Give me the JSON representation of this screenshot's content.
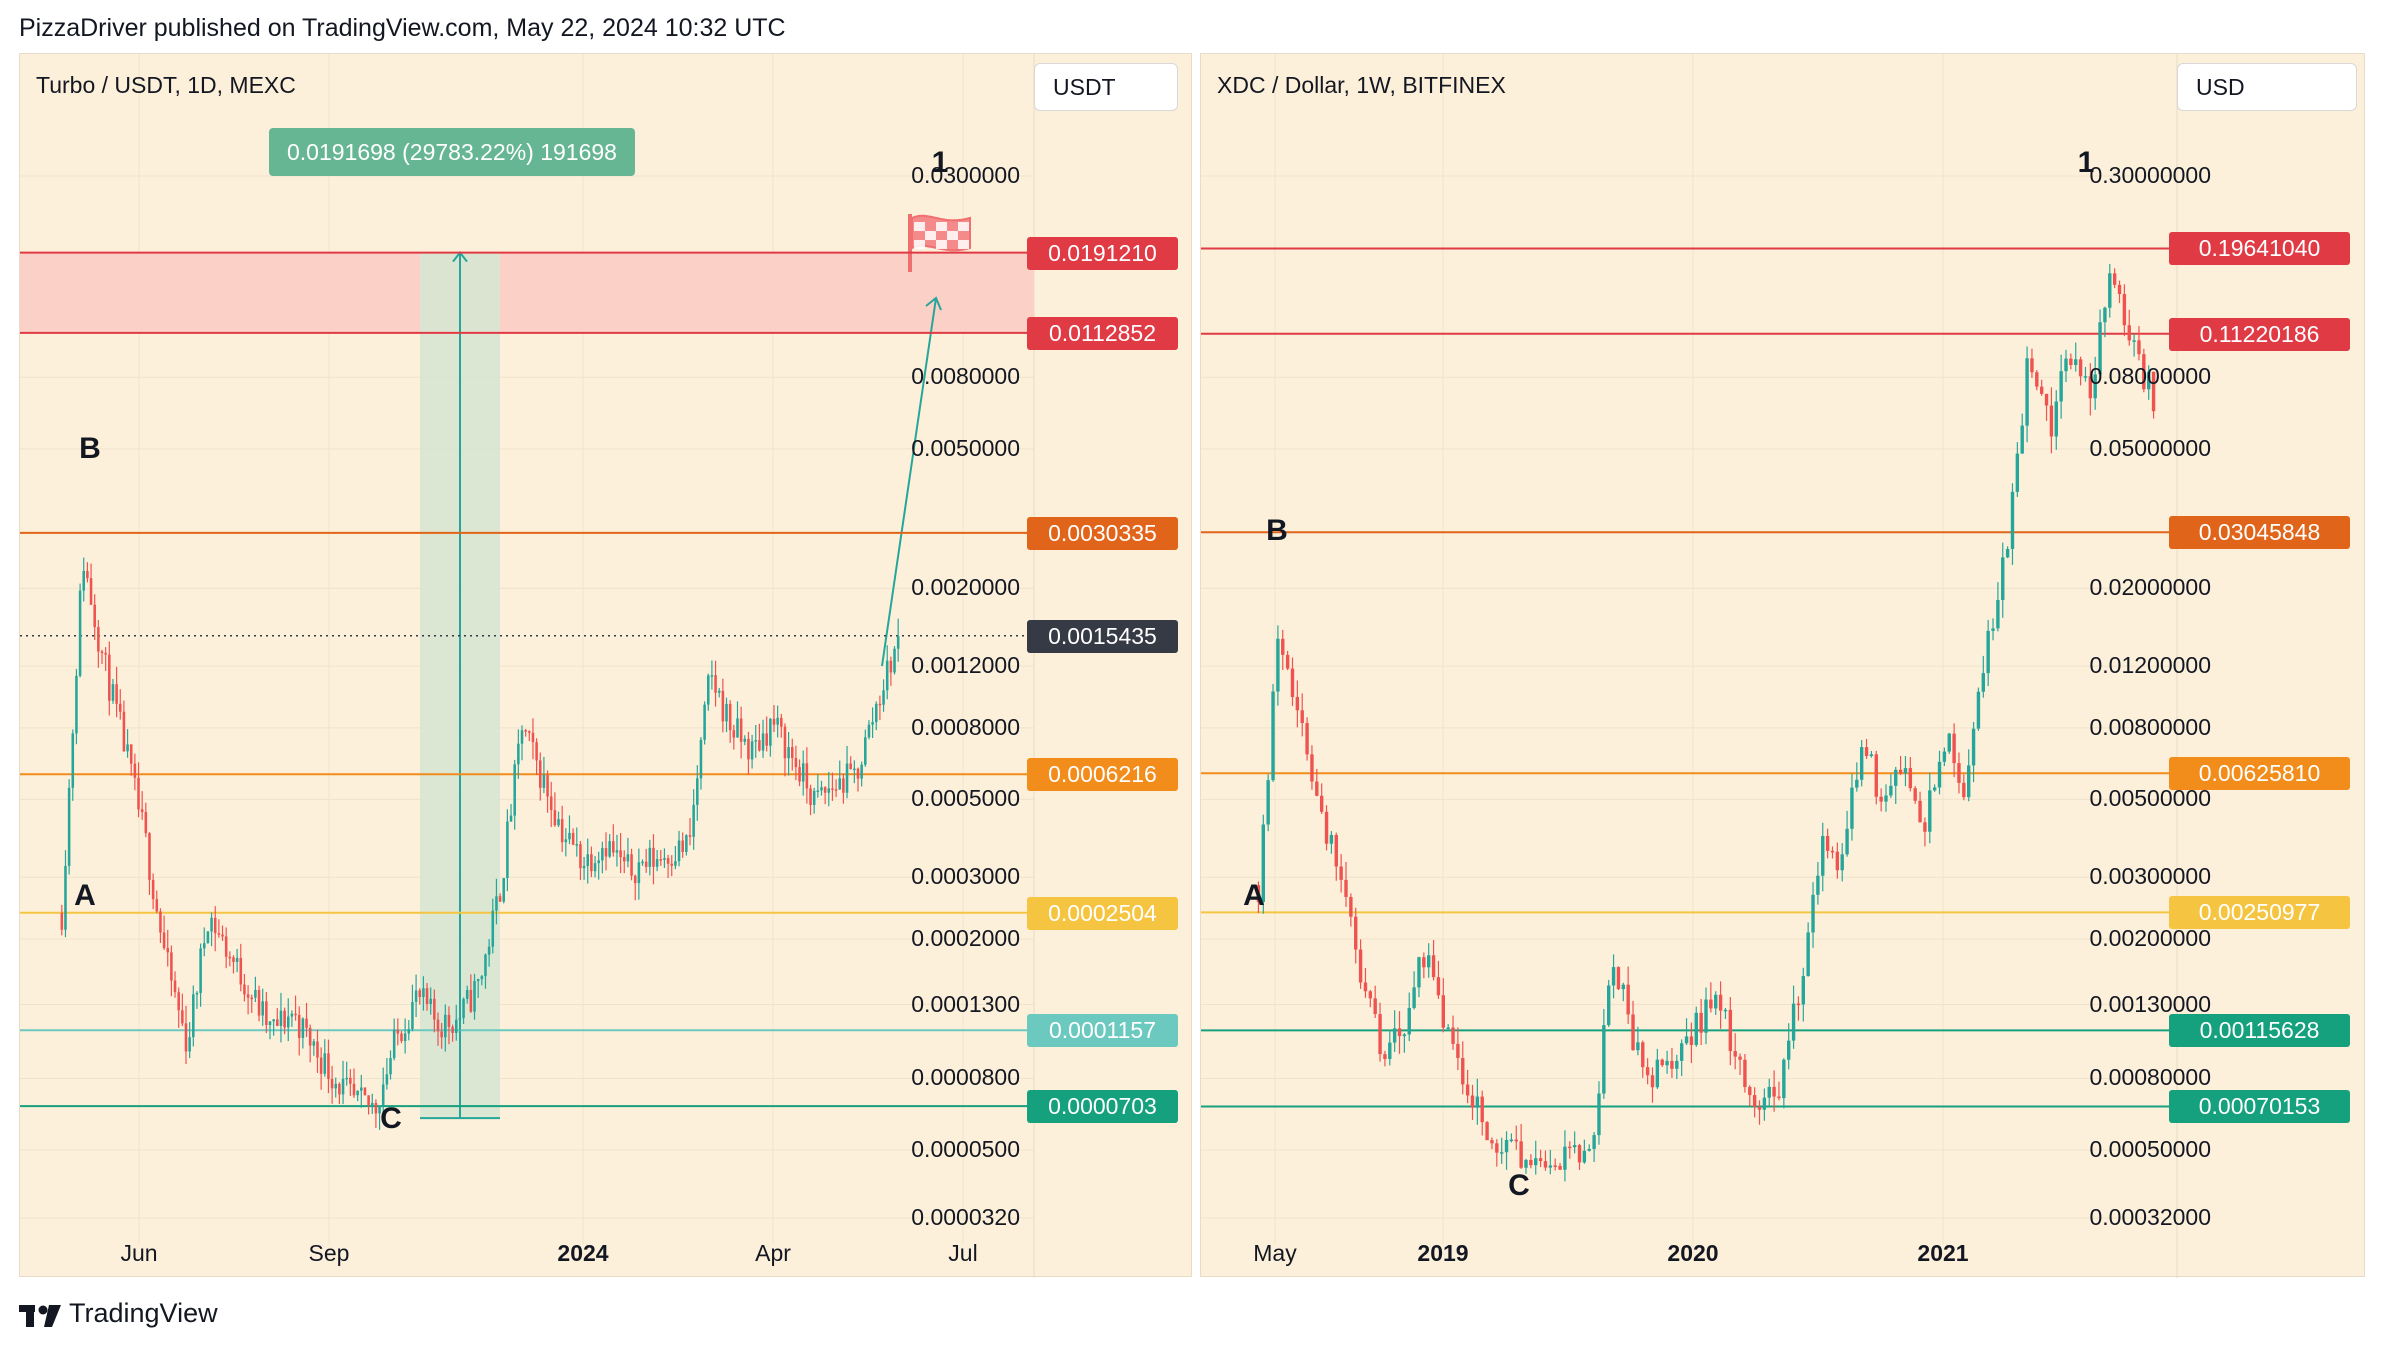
{
  "header": {
    "publish_line": "PizzaDriver published on TradingView.com, May 22, 2024 10:32 UTC"
  },
  "footer": {
    "brand": "TradingView",
    "logo_icon": "tradingview-logo-icon"
  },
  "colors": {
    "up": "#26a69a",
    "down": "#ef5350",
    "background": "#fdf0da",
    "red_line": "#e03a45",
    "orange_line": "#e0641a",
    "amber_line": "#f28c1a",
    "yellow_line": "#f5c542",
    "teal_line": "#6cc9bf",
    "green_line": "#15a07e"
  },
  "chart_data": [
    {
      "type": "candlestick",
      "title": "Turbo / USDT, 1D, MEXC",
      "currency": "USDT",
      "scale": "log",
      "ylim": [
        2.8e-05,
        0.034
      ],
      "y_ticks": [
        "0.0300000",
        "0.0080000",
        "0.0050000",
        "0.0020000",
        "0.0012000",
        "0.0008000",
        "0.0005000",
        "0.0003000",
        "0.0002000",
        "0.0001300",
        "0.0000800",
        "0.0000500",
        "0.0000320"
      ],
      "x_labels": [
        {
          "text": "Jun",
          "bold": false
        },
        {
          "text": "Sep",
          "bold": false
        },
        {
          "text": "2024",
          "bold": true
        },
        {
          "text": "Apr",
          "bold": false
        },
        {
          "text": "Jul",
          "bold": false
        }
      ],
      "price_lines": [
        {
          "label": "0.0191210",
          "value": 0.019121,
          "color": "#e03a45"
        },
        {
          "label": "0.0112852",
          "value": 0.0112852,
          "color": "#e03a45"
        },
        {
          "label": "0.0030335",
          "value": 0.0030335,
          "color": "#e0641a"
        },
        {
          "label": "0.0015435",
          "value": 0.0015435,
          "color": "#363a45",
          "style": "dotted",
          "current": true
        },
        {
          "label": "0.0006216",
          "value": 0.0006216,
          "color": "#f28c1a"
        },
        {
          "label": "0.0002504",
          "value": 0.0002504,
          "color": "#f5c542"
        },
        {
          "label": "0.0001157",
          "value": 0.0001157,
          "color": "#6cc9bf"
        },
        {
          "label": "0.0000703",
          "value": 7.03e-05,
          "color": "#15a07e"
        }
      ],
      "target_zone": {
        "from": 0.0112852,
        "to": 0.019121
      },
      "measure_label": "0.0191698 (29783.22%) 191698",
      "wave_labels": [
        "B",
        "A",
        "C",
        "1"
      ],
      "target_icon": "checkered-flag-icon",
      "price_path": [
        0.00025,
        0.0026,
        0.0013,
        0.00075,
        0.0004,
        0.00018,
        0.000105,
        0.00025,
        0.00019,
        0.00015,
        0.000115,
        0.00013,
        0.000105,
        8.5e-05,
        7.2e-05,
        7e-05,
        0.00011,
        0.000145,
        0.00012,
        0.000125,
        0.00016,
        0.0003,
        0.00085,
        0.0006,
        0.00042,
        0.00035,
        0.0004,
        0.00033,
        0.00035,
        0.00037,
        0.00039,
        0.0012,
        0.00085,
        0.00072,
        0.00088,
        0.00068,
        0.00052,
        0.00058,
        0.00062,
        0.001,
        0.0015
      ]
    },
    {
      "type": "candlestick",
      "title": "XDC / Dollar, 1W, BITFINEX",
      "currency": "USD",
      "scale": "log",
      "ylim": [
        0.00028,
        0.34
      ],
      "y_ticks": [
        "0.30000000",
        "0.08000000",
        "0.05000000",
        "0.02000000",
        "0.01200000",
        "0.00800000",
        "0.00500000",
        "0.00300000",
        "0.00200000",
        "0.00130000",
        "0.00080000",
        "0.00050000",
        "0.00032000"
      ],
      "x_labels": [
        {
          "text": "May",
          "bold": false
        },
        {
          "text": "2019",
          "bold": true
        },
        {
          "text": "2020",
          "bold": true
        },
        {
          "text": "2021",
          "bold": true
        }
      ],
      "price_lines": [
        {
          "label": "0.19641040",
          "value": 0.1964104,
          "color": "#e03a45"
        },
        {
          "label": "0.11220186",
          "value": 0.11220186,
          "color": "#e03a45"
        },
        {
          "label": "0.03045848",
          "value": 0.03045848,
          "color": "#e0641a"
        },
        {
          "label": "0.00625810",
          "value": 0.0062581,
          "color": "#f28c1a"
        },
        {
          "label": "0.00250977",
          "value": 0.00250977,
          "color": "#f5c542"
        },
        {
          "label": "0.00115628",
          "value": 0.00115628,
          "color": "#15a07e"
        },
        {
          "label": "0.00070153",
          "value": 0.00070153,
          "color": "#15a07e"
        }
      ],
      "wave_labels": [
        "B",
        "A",
        "C",
        "1"
      ],
      "price_path": [
        0.003,
        0.016,
        0.009,
        0.005,
        0.003,
        0.0015,
        0.001,
        0.0012,
        0.002,
        0.0011,
        0.0008,
        0.0006,
        0.00055,
        0.0005,
        0.00045,
        0.0005,
        0.00048,
        0.002,
        0.0011,
        0.00085,
        0.001,
        0.0012,
        0.0014,
        0.001,
        0.00065,
        0.0008,
        0.0015,
        0.004,
        0.0035,
        0.008,
        0.005,
        0.007,
        0.0045,
        0.008,
        0.0055,
        0.015,
        0.028,
        0.1,
        0.06,
        0.1,
        0.08,
        0.18,
        0.1,
        0.075
      ]
    }
  ]
}
